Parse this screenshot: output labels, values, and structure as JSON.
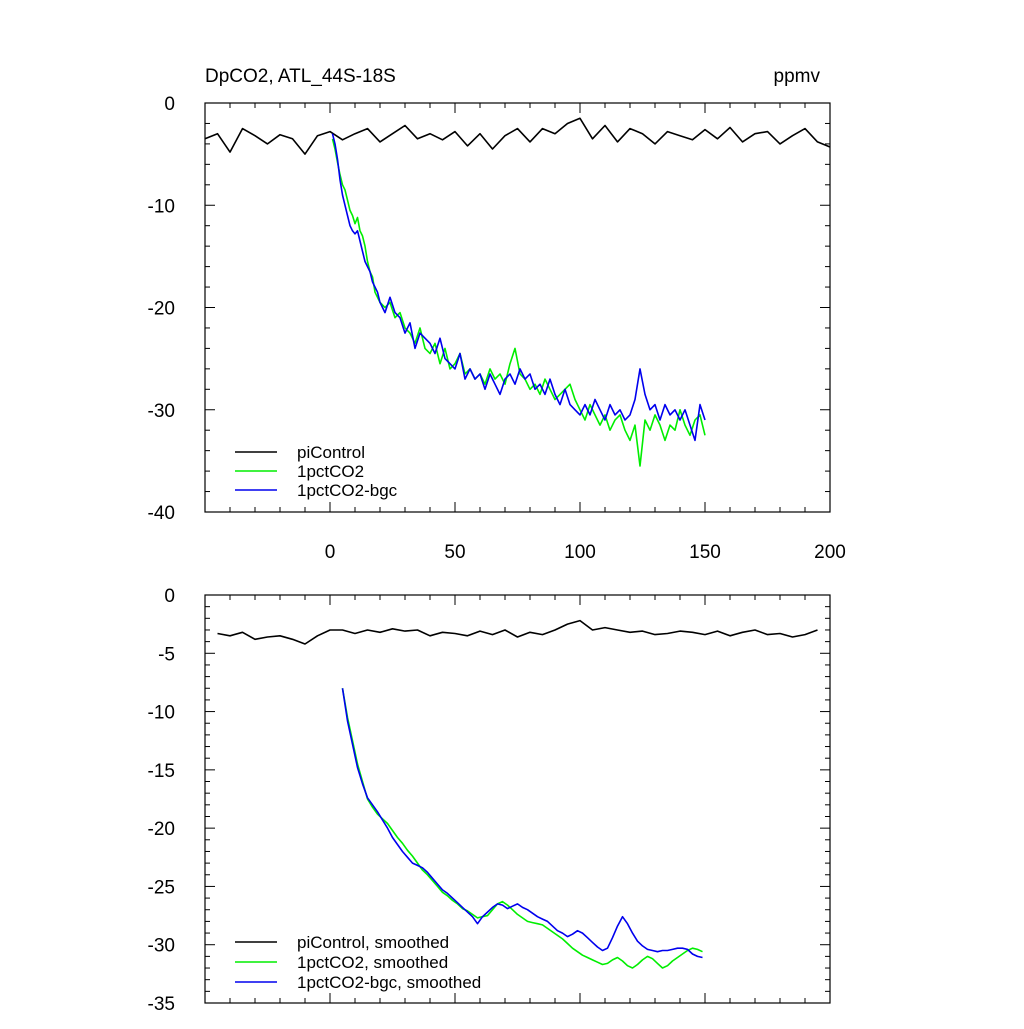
{
  "chart_data": [
    {
      "type": "line",
      "title": "DpCO2, ATL_44S-18S",
      "units": "ppmv",
      "xlabel": "",
      "ylabel": "",
      "xlim": [
        -50,
        200
      ],
      "ylim": [
        -40,
        0
      ],
      "x_ticks": [
        0,
        50,
        100,
        150,
        200
      ],
      "x_tick_labels": [
        "0",
        "50",
        "100",
        "150",
        "200"
      ],
      "y_ticks": [
        0,
        -10,
        -20,
        -30,
        -40
      ],
      "y_tick_labels": [
        "0",
        "-10",
        "-20",
        "-30",
        "-40"
      ],
      "grid": false,
      "legend_position": "bottom-left",
      "series": [
        {
          "name": "piControl",
          "color": "#000000",
          "x": [
            -50,
            -45,
            -40,
            -35,
            -30,
            -25,
            -20,
            -15,
            -10,
            -5,
            0,
            5,
            10,
            15,
            20,
            25,
            30,
            35,
            40,
            45,
            50,
            55,
            60,
            65,
            70,
            75,
            80,
            85,
            90,
            95,
            100,
            105,
            110,
            115,
            120,
            125,
            130,
            135,
            140,
            145,
            150,
            155,
            160,
            165,
            170,
            175,
            180,
            185,
            190,
            195,
            200
          ],
          "y": [
            -3.5,
            -3.0,
            -4.8,
            -2.5,
            -3.2,
            -4.0,
            -3.1,
            -3.5,
            -5.0,
            -3.2,
            -2.8,
            -3.6,
            -3.0,
            -2.5,
            -3.8,
            -3.0,
            -2.2,
            -3.5,
            -3.0,
            -3.6,
            -2.8,
            -4.2,
            -3.0,
            -4.5,
            -3.2,
            -2.5,
            -3.8,
            -2.5,
            -3.0,
            -2.0,
            -1.5,
            -3.5,
            -2.2,
            -3.8,
            -2.5,
            -3.0,
            -4.0,
            -2.8,
            -3.2,
            -3.6,
            -2.6,
            -3.5,
            -2.4,
            -3.8,
            -3.0,
            -2.8,
            -4.0,
            -3.2,
            -2.5,
            -3.8,
            -4.3
          ]
        },
        {
          "name": "1pctCO2",
          "color": "#00ee00",
          "x": [
            1,
            2,
            3,
            4,
            5,
            6,
            7,
            8,
            9,
            10,
            11,
            12,
            13,
            14,
            15,
            16,
            17,
            18,
            19,
            20,
            22,
            24,
            26,
            28,
            30,
            32,
            34,
            36,
            38,
            40,
            42,
            44,
            46,
            48,
            50,
            52,
            54,
            56,
            58,
            60,
            62,
            64,
            66,
            68,
            70,
            72,
            74,
            76,
            78,
            80,
            82,
            84,
            86,
            88,
            90,
            92,
            94,
            96,
            98,
            100,
            102,
            104,
            106,
            108,
            110,
            112,
            114,
            116,
            118,
            120,
            122,
            124,
            126,
            128,
            130,
            132,
            134,
            136,
            138,
            140,
            142,
            144,
            146,
            148,
            150
          ],
          "y": [
            -3.5,
            -4.5,
            -5.8,
            -7.0,
            -8.0,
            -8.5,
            -9.5,
            -10.5,
            -11.0,
            -11.8,
            -11.2,
            -12.5,
            -13.0,
            -14.0,
            -15.5,
            -16.5,
            -17.0,
            -18.5,
            -19.0,
            -19.5,
            -20.0,
            -19.5,
            -21.0,
            -20.5,
            -22.0,
            -22.5,
            -23.5,
            -22.0,
            -24.0,
            -24.5,
            -23.5,
            -25.5,
            -24.0,
            -26.0,
            -25.5,
            -24.5,
            -26.5,
            -26.0,
            -27.0,
            -26.5,
            -27.5,
            -26.0,
            -27.0,
            -26.5,
            -27.5,
            -25.5,
            -24.0,
            -26.5,
            -27.0,
            -28.0,
            -27.5,
            -28.5,
            -27.0,
            -28.0,
            -29.0,
            -28.5,
            -28.0,
            -27.5,
            -29.0,
            -30.0,
            -31.0,
            -29.5,
            -30.5,
            -31.5,
            -30.5,
            -32.0,
            -31.0,
            -30.5,
            -32.0,
            -33.0,
            -31.5,
            -35.5,
            -31.0,
            -32.0,
            -30.5,
            -31.5,
            -33.0,
            -31.5,
            -32.0,
            -30.0,
            -31.5,
            -32.5,
            -31.0,
            -30.5,
            -32.5
          ]
        },
        {
          "name": "1pctCO2-bgc",
          "color": "#0000ee",
          "x": [
            1,
            2,
            3,
            4,
            5,
            6,
            7,
            8,
            9,
            10,
            11,
            12,
            13,
            14,
            15,
            16,
            17,
            18,
            19,
            20,
            22,
            24,
            26,
            28,
            30,
            32,
            34,
            36,
            38,
            40,
            42,
            44,
            46,
            48,
            50,
            52,
            54,
            56,
            58,
            60,
            62,
            64,
            66,
            68,
            70,
            72,
            74,
            76,
            78,
            80,
            82,
            84,
            86,
            88,
            90,
            92,
            94,
            96,
            98,
            100,
            102,
            104,
            106,
            108,
            110,
            112,
            114,
            116,
            118,
            120,
            122,
            124,
            126,
            128,
            130,
            132,
            134,
            136,
            138,
            140,
            142,
            144,
            146,
            148,
            150
          ],
          "y": [
            -3.0,
            -4.0,
            -5.5,
            -7.5,
            -9.0,
            -10.0,
            -11.0,
            -12.0,
            -12.5,
            -12.8,
            -12.5,
            -13.5,
            -14.5,
            -15.5,
            -16.0,
            -16.5,
            -17.5,
            -18.0,
            -18.5,
            -19.5,
            -20.5,
            -19.0,
            -20.5,
            -21.0,
            -22.5,
            -21.5,
            -24.0,
            -22.5,
            -23.0,
            -23.5,
            -24.5,
            -23.0,
            -25.0,
            -25.5,
            -26.0,
            -24.5,
            -27.0,
            -26.0,
            -27.0,
            -26.5,
            -28.0,
            -26.5,
            -27.5,
            -28.5,
            -27.0,
            -26.5,
            -27.5,
            -26.0,
            -27.0,
            -26.5,
            -28.0,
            -27.5,
            -28.5,
            -27.0,
            -28.5,
            -29.5,
            -28.0,
            -29.5,
            -30.0,
            -30.5,
            -29.5,
            -30.5,
            -29.0,
            -30.0,
            -31.0,
            -29.5,
            -30.5,
            -30.0,
            -31.0,
            -30.5,
            -29.0,
            -26.0,
            -28.5,
            -30.0,
            -29.5,
            -31.0,
            -29.5,
            -30.5,
            -30.0,
            -31.0,
            -30.0,
            -31.5,
            -33.0,
            -29.5,
            -31.0
          ]
        }
      ],
      "legend": {
        "entries": [
          "piControl",
          "1pctCO2",
          "1pctCO2-bgc"
        ],
        "colors": [
          "#000000",
          "#00ee00",
          "#0000ee"
        ]
      }
    },
    {
      "type": "line",
      "title": "",
      "xlabel": "",
      "ylabel": "",
      "xlim": [
        -50,
        200
      ],
      "ylim": [
        -35,
        0
      ],
      "x_ticks": [
        0,
        50,
        100,
        150,
        200
      ],
      "x_tick_labels": [],
      "y_ticks": [
        0,
        -5,
        -10,
        -15,
        -20,
        -25,
        -30,
        -35
      ],
      "y_tick_labels": [
        "0",
        "-5",
        "-10",
        "-15",
        "-20",
        "-25",
        "-30",
        "-35"
      ],
      "grid": false,
      "legend_position": "bottom-left",
      "series": [
        {
          "name": "piControl, smoothed",
          "color": "#000000",
          "x": [
            -45,
            -40,
            -35,
            -30,
            -25,
            -20,
            -15,
            -10,
            -5,
            0,
            5,
            10,
            15,
            20,
            25,
            30,
            35,
            40,
            45,
            50,
            55,
            60,
            65,
            70,
            75,
            80,
            85,
            90,
            95,
            100,
            105,
            110,
            115,
            120,
            125,
            130,
            135,
            140,
            145,
            150,
            155,
            160,
            165,
            170,
            175,
            180,
            185,
            190,
            195
          ],
          "y": [
            -3.3,
            -3.5,
            -3.2,
            -3.8,
            -3.6,
            -3.5,
            -3.8,
            -4.2,
            -3.5,
            -3.0,
            -3.0,
            -3.3,
            -3.0,
            -3.2,
            -2.9,
            -3.1,
            -3.0,
            -3.5,
            -3.2,
            -3.3,
            -3.5,
            -3.1,
            -3.4,
            -3.0,
            -3.6,
            -3.2,
            -3.4,
            -3.0,
            -2.5,
            -2.2,
            -3.0,
            -2.8,
            -3.0,
            -3.2,
            -3.1,
            -3.4,
            -3.3,
            -3.1,
            -3.2,
            -3.4,
            -3.1,
            -3.5,
            -3.2,
            -3.0,
            -3.4,
            -3.3,
            -3.6,
            -3.4,
            -3.0
          ]
        },
        {
          "name": "1pctCO2, smoothed",
          "color": "#00ee00",
          "x": [
            5,
            7,
            9,
            11,
            13,
            15,
            17,
            19,
            21,
            23,
            25,
            27,
            29,
            31,
            33,
            35,
            37,
            39,
            41,
            43,
            45,
            47,
            49,
            51,
            53,
            55,
            57,
            59,
            61,
            63,
            65,
            67,
            69,
            71,
            73,
            75,
            77,
            79,
            81,
            83,
            85,
            87,
            89,
            91,
            93,
            95,
            97,
            99,
            101,
            103,
            105,
            107,
            109,
            111,
            113,
            115,
            117,
            119,
            121,
            123,
            125,
            127,
            129,
            131,
            133,
            135,
            137,
            139,
            141,
            143,
            145,
            147,
            149
          ],
          "y": [
            -8.0,
            -10.5,
            -12.5,
            -14.5,
            -16.0,
            -17.5,
            -18.2,
            -18.8,
            -19.2,
            -19.6,
            -20.2,
            -20.8,
            -21.3,
            -21.9,
            -22.4,
            -23.0,
            -23.6,
            -24.0,
            -24.5,
            -25.0,
            -25.5,
            -25.8,
            -26.2,
            -26.5,
            -26.9,
            -27.1,
            -27.4,
            -27.7,
            -27.6,
            -27.5,
            -27.0,
            -26.5,
            -26.3,
            -26.6,
            -27.0,
            -27.4,
            -27.7,
            -28.0,
            -28.1,
            -28.2,
            -28.3,
            -28.6,
            -28.9,
            -29.2,
            -29.5,
            -29.9,
            -30.3,
            -30.6,
            -30.9,
            -31.1,
            -31.3,
            -31.5,
            -31.7,
            -31.6,
            -31.3,
            -31.1,
            -31.4,
            -31.8,
            -32.0,
            -31.7,
            -31.3,
            -31.0,
            -31.2,
            -31.6,
            -32.0,
            -31.8,
            -31.4,
            -31.1,
            -30.8,
            -30.5,
            -30.3,
            -30.4,
            -30.6
          ]
        },
        {
          "name": "1pctCO2-bgc, smoothed",
          "color": "#0000ee",
          "x": [
            5,
            7,
            9,
            11,
            13,
            15,
            17,
            19,
            21,
            23,
            25,
            27,
            29,
            31,
            33,
            35,
            37,
            39,
            41,
            43,
            45,
            47,
            49,
            51,
            53,
            55,
            57,
            59,
            61,
            63,
            65,
            67,
            69,
            71,
            73,
            75,
            77,
            79,
            81,
            83,
            85,
            87,
            89,
            91,
            93,
            95,
            97,
            99,
            101,
            103,
            105,
            107,
            109,
            111,
            113,
            115,
            117,
            119,
            121,
            123,
            125,
            127,
            129,
            131,
            133,
            135,
            137,
            139,
            141,
            143,
            145,
            147,
            149
          ],
          "y": [
            -8.0,
            -10.8,
            -12.8,
            -14.8,
            -16.2,
            -17.4,
            -18.0,
            -18.6,
            -19.3,
            -20.0,
            -20.8,
            -21.4,
            -22.0,
            -22.5,
            -23.0,
            -23.2,
            -23.4,
            -23.8,
            -24.3,
            -24.8,
            -25.3,
            -25.6,
            -26.0,
            -26.4,
            -26.8,
            -27.2,
            -27.6,
            -28.2,
            -27.6,
            -27.2,
            -26.8,
            -26.5,
            -26.6,
            -26.9,
            -26.7,
            -26.5,
            -26.8,
            -27.0,
            -27.3,
            -27.6,
            -27.8,
            -28.0,
            -28.4,
            -28.8,
            -29.0,
            -29.3,
            -29.1,
            -28.8,
            -29.0,
            -29.4,
            -29.8,
            -30.2,
            -30.5,
            -30.3,
            -29.4,
            -28.4,
            -27.6,
            -28.2,
            -29.0,
            -29.7,
            -30.1,
            -30.4,
            -30.5,
            -30.6,
            -30.5,
            -30.5,
            -30.4,
            -30.3,
            -30.3,
            -30.4,
            -30.8,
            -31.0,
            -31.1
          ]
        }
      ],
      "legend": {
        "entries": [
          "piControl, smoothed",
          "1pctCO2, smoothed",
          "1pctCO2-bgc, smoothed"
        ],
        "colors": [
          "#000000",
          "#00ee00",
          "#0000ee"
        ]
      }
    }
  ]
}
